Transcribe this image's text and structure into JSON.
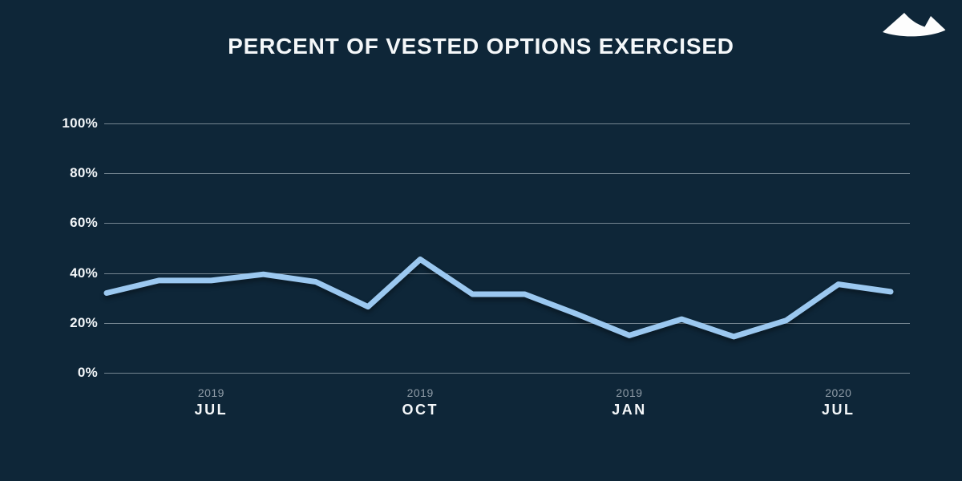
{
  "header": {
    "logo_icon": "mountains-icon"
  },
  "colors": {
    "background": "#0E2638",
    "line": "#9BC8F0",
    "grid": "#97A5AF",
    "title_text": "#F4F7F9",
    "ytick_text": "#F4F7F9",
    "month_text": "#F4F7F9",
    "year_text": "#8E9BA6",
    "logo": "#FDFDFD"
  },
  "chart_data": {
    "type": "line",
    "title": "PERCENT OF VESTED OPTIONS EXERCISED",
    "xlabel": "",
    "ylabel": "",
    "ylim": [
      0,
      100
    ],
    "grid": true,
    "legend": "none",
    "x": [
      0,
      1,
      2,
      3,
      4,
      5,
      6,
      7,
      8,
      9,
      10,
      11,
      12,
      13,
      14,
      15
    ],
    "values": [
      32,
      37,
      37,
      39.5,
      36.5,
      26.5,
      45.5,
      31.5,
      31.5,
      23.5,
      15,
      21.5,
      14.5,
      21,
      35.5,
      32.5
    ],
    "yticks": [
      {
        "label": "100%",
        "value": 100
      },
      {
        "label": "80%",
        "value": 80
      },
      {
        "label": "60%",
        "value": 60
      },
      {
        "label": "40%",
        "value": 40
      },
      {
        "label": "20%",
        "value": 20
      },
      {
        "label": "0%",
        "value": 0
      }
    ],
    "x_tick_labels": [
      {
        "point_index": 2,
        "year": "2019",
        "month": "JUL"
      },
      {
        "point_index": 6,
        "year": "2019",
        "month": "OCT"
      },
      {
        "point_index": 10,
        "year": "2019",
        "month": "JAN"
      },
      {
        "point_index": 14,
        "year": "2020",
        "month": "JUL"
      }
    ]
  }
}
